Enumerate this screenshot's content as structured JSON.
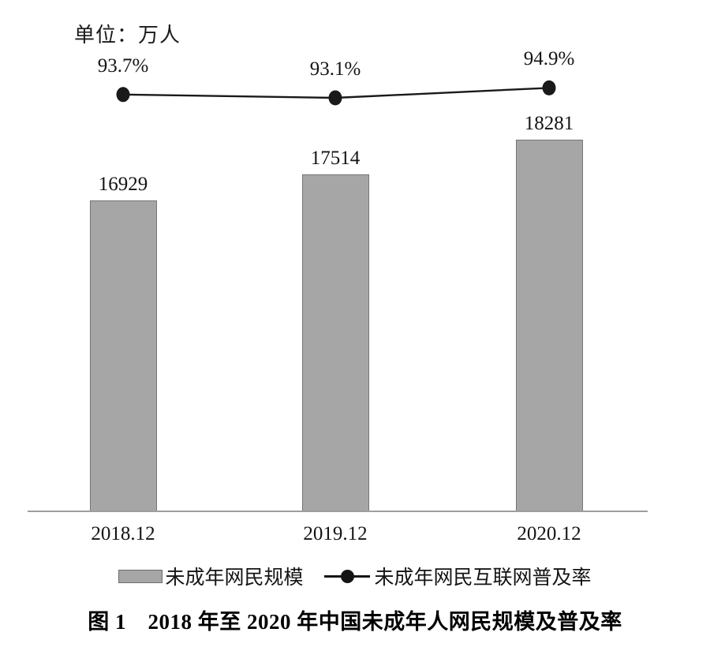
{
  "unit_label": "单位：万人",
  "caption": "图 1　2018 年至 2020 年中国未成年人网民规模及普及率",
  "legend": {
    "bar_label": "未成年网民规模",
    "line_label": "未成年网民互联网普及率"
  },
  "chart_data": {
    "type": "bar+line combo",
    "categories": [
      "2018.12",
      "2019.12",
      "2020.12"
    ],
    "series": [
      {
        "name": "未成年网民规模",
        "type": "bar",
        "unit": "万人",
        "values": [
          16929,
          17514,
          18281
        ],
        "labels": [
          "16929",
          "17514",
          "18281"
        ],
        "color": "#a6a6a6"
      },
      {
        "name": "未成年网民互联网普及率",
        "type": "line",
        "unit": "%",
        "values": [
          93.7,
          93.1,
          94.9
        ],
        "labels": [
          "93.7%",
          "93.1%",
          "94.9%"
        ],
        "color": "#1a1a1a"
      }
    ],
    "title": "图 1　2018 年至 2020 年中国未成年人网民规模及普及率",
    "ylabel": "单位：万人",
    "grid": false,
    "axes_hidden": true,
    "legend_position": "bottom",
    "data_labels_shown": true
  }
}
